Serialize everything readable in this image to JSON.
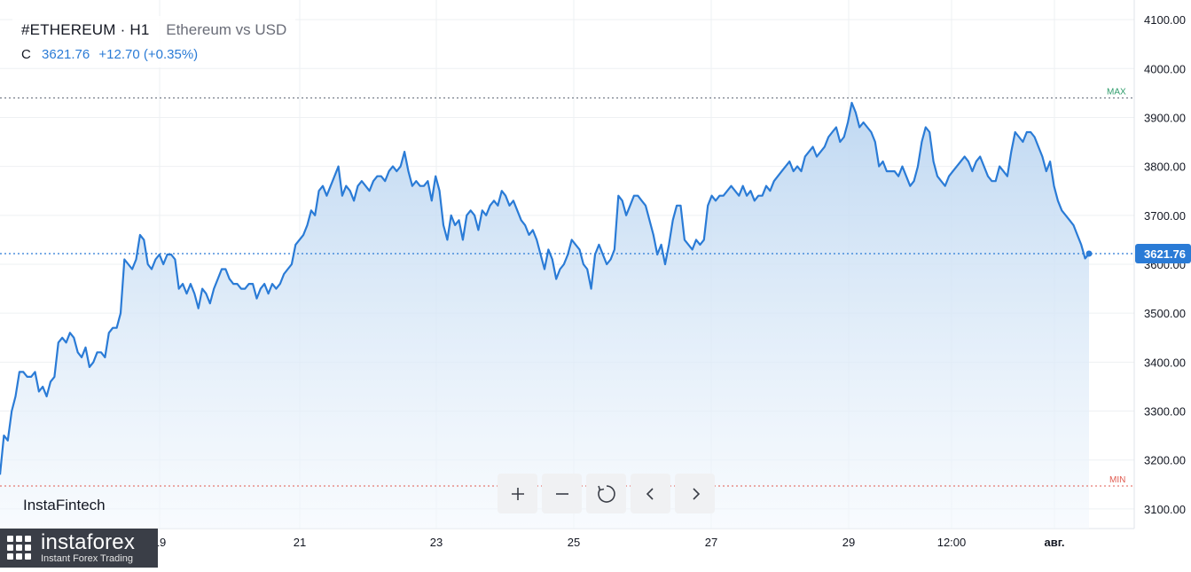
{
  "legend": {
    "symbol": "#ETHEREUM · H1",
    "description": "Ethereum vs USD",
    "close_label": "C",
    "close_value": "3621.76",
    "change": "+12.70 (+0.35%)"
  },
  "colors": {
    "line": "#2a7bd6",
    "area_top": "#bcd6f1",
    "area_bottom": "#f3f8fd",
    "max_line": "#2e9c6b",
    "min_line": "#e05a4f",
    "price_badge": "#2a7bd6"
  },
  "brand": {
    "inset_label": "InstaFintech",
    "badge_name": "instaforex",
    "badge_tagline": "Instant Forex Trading"
  },
  "controls": [
    "zoom-in",
    "zoom-out",
    "reset",
    "scroll-left",
    "scroll-right"
  ],
  "chart_data": {
    "type": "area",
    "ylim": [
      3060,
      4140
    ],
    "y_ticks": [
      "4100.00",
      "4000.00",
      "3900.00",
      "3800.00",
      "3700.00",
      "3600.00",
      "3500.00",
      "3400.00",
      "3300.00",
      "3200.00",
      "3100.00"
    ],
    "x_ticks": [
      "19",
      "21",
      "23",
      "25",
      "27",
      "29",
      "12:00",
      "авг."
    ],
    "max_label": "MAX",
    "max_value": 3940,
    "min_label": "MIN",
    "min_value": 3147,
    "last_price_label": "3621.76",
    "last_price": 3621.76,
    "grid": true,
    "series": [
      {
        "values": [
          3170,
          3250,
          3240,
          3300,
          3330,
          3380,
          3380,
          3370,
          3370,
          3380,
          3340,
          3350,
          3330,
          3360,
          3370,
          3440,
          3450,
          3440,
          3460,
          3450,
          3420,
          3410,
          3430,
          3390,
          3400,
          3420,
          3420,
          3410,
          3460,
          3470,
          3470,
          3500,
          3610,
          3600,
          3590,
          3610,
          3660,
          3650,
          3600,
          3590,
          3610,
          3620,
          3600,
          3620,
          3620,
          3610,
          3550,
          3560,
          3540,
          3560,
          3540,
          3510,
          3550,
          3540,
          3520,
          3550,
          3570,
          3590,
          3590,
          3570,
          3560,
          3560,
          3550,
          3550,
          3560,
          3560,
          3530,
          3550,
          3560,
          3540,
          3560,
          3550,
          3560,
          3580,
          3590,
          3600,
          3640,
          3650,
          3660,
          3680,
          3710,
          3700,
          3750,
          3760,
          3740,
          3760,
          3780,
          3800,
          3740,
          3760,
          3750,
          3730,
          3760,
          3770,
          3760,
          3750,
          3770,
          3780,
          3780,
          3770,
          3790,
          3800,
          3790,
          3800,
          3830,
          3790,
          3760,
          3770,
          3760,
          3760,
          3770,
          3730,
          3780,
          3750,
          3680,
          3650,
          3700,
          3680,
          3690,
          3650,
          3700,
          3710,
          3700,
          3670,
          3710,
          3700,
          3720,
          3730,
          3720,
          3750,
          3740,
          3720,
          3730,
          3710,
          3690,
          3680,
          3660,
          3670,
          3650,
          3620,
          3590,
          3630,
          3610,
          3570,
          3590,
          3600,
          3620,
          3650,
          3640,
          3630,
          3600,
          3590,
          3550,
          3620,
          3640,
          3620,
          3600,
          3610,
          3630,
          3740,
          3730,
          3700,
          3720,
          3740,
          3740,
          3730,
          3720,
          3690,
          3660,
          3620,
          3640,
          3600,
          3640,
          3690,
          3720,
          3720,
          3650,
          3640,
          3630,
          3650,
          3640,
          3650,
          3720,
          3740,
          3730,
          3740,
          3740,
          3750,
          3760,
          3750,
          3740,
          3760,
          3740,
          3750,
          3730,
          3740,
          3740,
          3760,
          3750,
          3770,
          3780,
          3790,
          3800,
          3810,
          3790,
          3800,
          3790,
          3820,
          3830,
          3840,
          3820,
          3830,
          3840,
          3860,
          3870,
          3880,
          3850,
          3860,
          3890,
          3930,
          3910,
          3880,
          3890,
          3880,
          3870,
          3850,
          3800,
          3810,
          3790,
          3790,
          3790,
          3780,
          3800,
          3780,
          3760,
          3770,
          3800,
          3850,
          3880,
          3870,
          3810,
          3780,
          3770,
          3760,
          3780,
          3790,
          3800,
          3810,
          3820,
          3810,
          3790,
          3810,
          3820,
          3800,
          3780,
          3770,
          3770,
          3800,
          3790,
          3780,
          3830,
          3870,
          3860,
          3850,
          3870,
          3870,
          3860,
          3840,
          3820,
          3790,
          3810,
          3760,
          3730,
          3710,
          3700,
          3690,
          3680,
          3660,
          3640,
          3612,
          3621.76
        ]
      }
    ]
  }
}
